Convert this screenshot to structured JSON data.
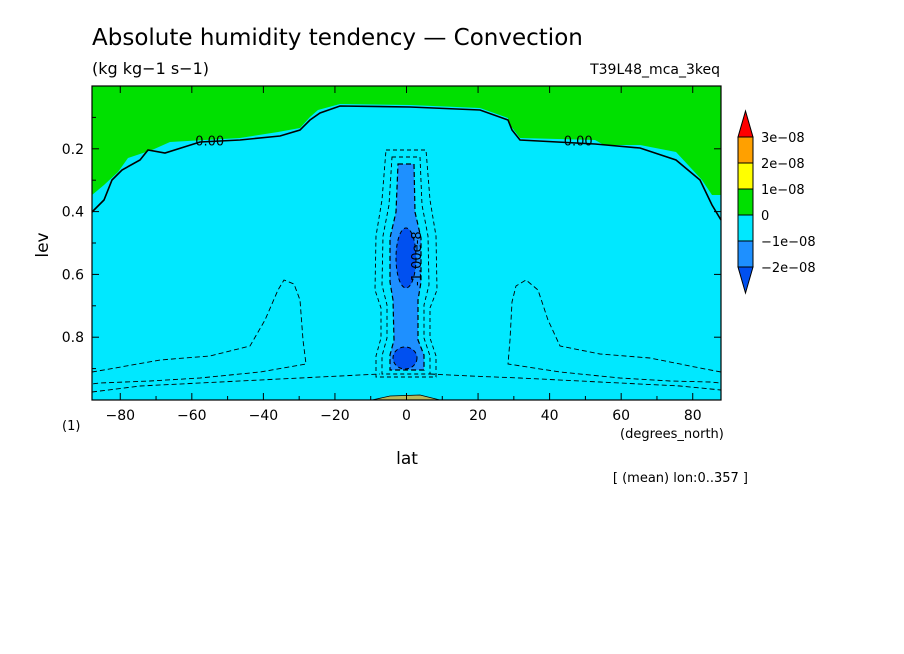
{
  "chart_data": {
    "type": "heatmap",
    "title": "Absolute humidity tendency — Convection",
    "subtitle": "(kg kg−1 s−1)",
    "experiment": "T39L48_mca_3keq",
    "xlabel": "lat",
    "x_units": "(degrees_north)",
    "ylabel": "lev",
    "y_units": "(1)",
    "footnote": "[ (mean) lon:0..357 ]",
    "xlim": [
      -87.9,
      87.9
    ],
    "ylim": [
      1.0,
      0.0
    ],
    "x_ticks": [
      -80,
      -60,
      -40,
      -20,
      0,
      20,
      40,
      60,
      80
    ],
    "x_tick_labels": [
      "−80",
      "−60",
      "−40",
      "−20",
      "0",
      "20",
      "40",
      "60",
      "80"
    ],
    "y_ticks": [
      0.2,
      0.4,
      0.6,
      0.8
    ],
    "y_tick_labels": [
      "0.2",
      "0.4",
      "0.6",
      "0.8"
    ],
    "contour_labels": [
      {
        "text": "0.00",
        "lat": -55,
        "lev": 0.19
      },
      {
        "text": "0.00",
        "lat": 48,
        "lev": 0.19
      },
      {
        "text": "-1.00e-8",
        "lat": 4,
        "lev": 0.55
      }
    ],
    "colorbar": {
      "levels": [
        "3e−08",
        "2e−08",
        "1e−08",
        "0",
        "−1e−08",
        "−2e−08"
      ],
      "bins": [
        {
          "range": "> 3e-08",
          "color": "#ff0000"
        },
        {
          "range": "2e-08 to 3e-08",
          "color": "#ffa000"
        },
        {
          "range": "1e-08 to 2e-08",
          "color": "#ffff00"
        },
        {
          "range": "0 to 1e-08",
          "color": "#00e000"
        },
        {
          "range": "-1e-08 to 0",
          "color": "#00e8ff"
        },
        {
          "range": "-2e-08 to -1e-08",
          "color": "#1e90ff"
        },
        {
          "range": "< -2e-08",
          "color": "#0050f0"
        }
      ]
    },
    "regions": [
      {
        "name": "upper-positive",
        "range": "0 to 1e-08",
        "lev_range": [
          0.0,
          0.35
        ],
        "lat_range": [
          -87.9,
          87.9
        ]
      },
      {
        "name": "main-negative",
        "range": "-1e-08 to 0",
        "lev_range": [
          0.06,
          1.0
        ],
        "lat_range": [
          -87.9,
          87.9
        ]
      },
      {
        "name": "equatorial-column",
        "range": "-2e-08 to -1e-08",
        "lev_range": [
          0.25,
          0.92
        ],
        "lat_range": [
          -4,
          4
        ]
      },
      {
        "name": "equatorial-core",
        "range": "< -2e-08",
        "lev_range": [
          0.45,
          0.62
        ],
        "lat_range": [
          -2.5,
          2.5
        ]
      }
    ]
  }
}
